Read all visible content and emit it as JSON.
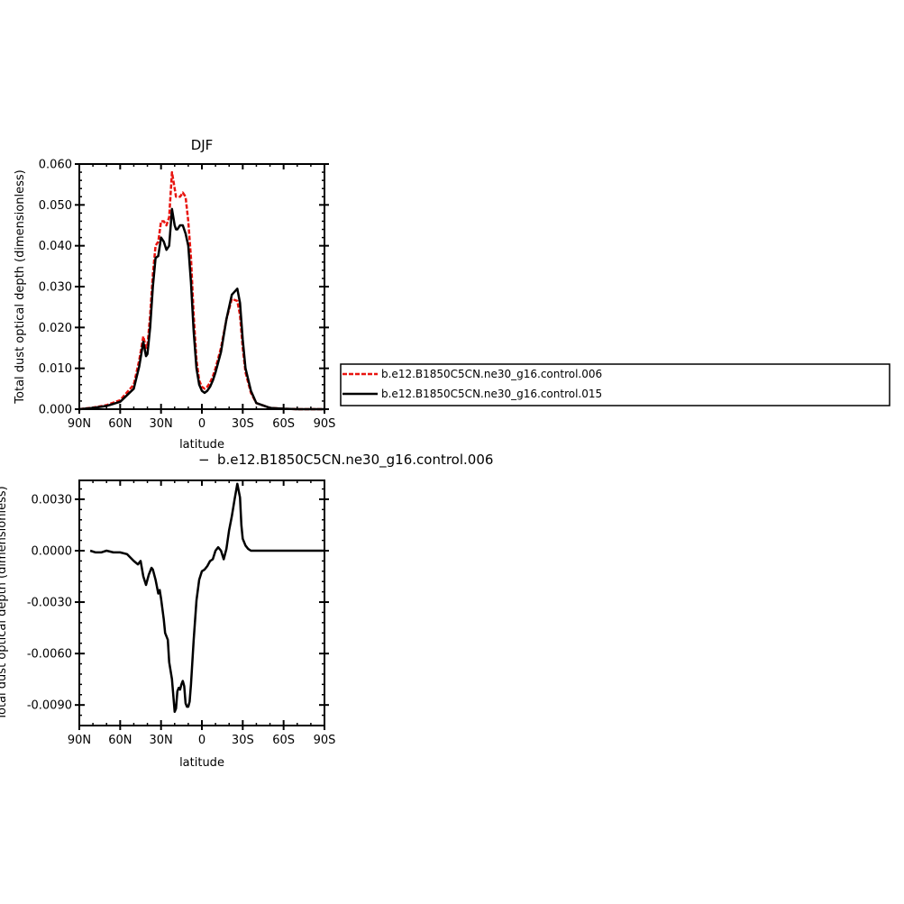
{
  "colors": {
    "series_006": "#e8140f",
    "series_015": "#000000",
    "diff": "#000000"
  },
  "legend": {
    "entries": [
      "b.e12.B1850C5CN.ne30_g16.control.006",
      "b.e12.B1850C5CN.ne30_g16.control.015"
    ]
  },
  "chart_data": [
    {
      "type": "line",
      "title": "DJF",
      "xlabel": "latitude",
      "ylabel": "Total dust optical depth (dimensionless)",
      "xlim": [
        90,
        -90
      ],
      "ylim": [
        0,
        0.06
      ],
      "x_ticks": [
        90,
        60,
        30,
        0,
        -30,
        -60,
        -90
      ],
      "x_tick_labels": [
        "90N",
        "60N",
        "30N",
        "0",
        "30S",
        "60S",
        "90S"
      ],
      "y_ticks": [
        0,
        0.01,
        0.02,
        0.03,
        0.04,
        0.05,
        0.06
      ],
      "y_tick_labels": [
        "0.000",
        "0.010",
        "0.020",
        "0.030",
        "0.040",
        "0.050",
        "0.060"
      ],
      "series": [
        {
          "name": "b.e12.B1850C5CN.ne30_g16.control.006",
          "style": "dashed",
          "color": "#e8140f",
          "x": [
            90,
            80,
            70,
            60,
            50,
            46,
            43,
            41,
            40,
            38,
            36,
            34,
            32,
            30,
            28,
            26,
            24,
            22,
            20,
            19,
            18,
            16,
            14,
            12,
            10,
            8,
            6,
            4,
            2,
            0,
            -2,
            -4,
            -6,
            -8,
            -10,
            -14,
            -18,
            -22,
            -26,
            -28,
            -30,
            -32,
            -36,
            -40,
            -50,
            -60,
            -70,
            -80,
            -90
          ],
          "y": [
            0.0,
            0.0004,
            0.001,
            0.0022,
            0.006,
            0.012,
            0.0178,
            0.015,
            0.0155,
            0.023,
            0.033,
            0.04,
            0.041,
            0.046,
            0.046,
            0.045,
            0.047,
            0.058,
            0.054,
            0.052,
            0.052,
            0.052,
            0.053,
            0.052,
            0.046,
            0.037,
            0.023,
            0.012,
            0.007,
            0.0055,
            0.005,
            0.0055,
            0.0065,
            0.008,
            0.01,
            0.015,
            0.022,
            0.027,
            0.0265,
            0.023,
            0.015,
            0.009,
            0.004,
            0.0015,
            0.0003,
            0.0001,
            0.0,
            0.0,
            0.0
          ]
        },
        {
          "name": "b.e12.B1850C5CN.ne30_g16.control.015",
          "style": "solid",
          "color": "#000000",
          "x": [
            90,
            80,
            70,
            60,
            50,
            46,
            43,
            41,
            40,
            38,
            36,
            34,
            32,
            30,
            28,
            26,
            24,
            22,
            20,
            19,
            18,
            16,
            14,
            12,
            10,
            8,
            6,
            4,
            2,
            0,
            -2,
            -4,
            -6,
            -8,
            -10,
            -14,
            -18,
            -22,
            -26,
            -28,
            -30,
            -32,
            -36,
            -40,
            -50,
            -60,
            -70,
            -80,
            -90
          ],
          "y": [
            0.0,
            0.0003,
            0.0008,
            0.0018,
            0.005,
            0.0105,
            0.0165,
            0.013,
            0.0135,
            0.02,
            0.03,
            0.037,
            0.0375,
            0.042,
            0.041,
            0.039,
            0.04,
            0.049,
            0.045,
            0.044,
            0.044,
            0.045,
            0.045,
            0.043,
            0.04,
            0.031,
            0.019,
            0.01,
            0.006,
            0.0045,
            0.004,
            0.0045,
            0.0055,
            0.007,
            0.009,
            0.014,
            0.022,
            0.028,
            0.0295,
            0.026,
            0.017,
            0.01,
            0.0045,
            0.0015,
            0.0003,
            0.0001,
            0.0,
            0.0,
            0.0
          ]
        }
      ]
    },
    {
      "type": "line",
      "title": "b.e12.B1850C5CN.ne30_g16.control.006",
      "title_prefix": "−",
      "xlabel": "latitude",
      "ylabel": "Total dust optical depth (dimensionless)",
      "xlim": [
        90,
        -90
      ],
      "ylim": [
        -0.0102,
        0.0041
      ],
      "x_ticks": [
        90,
        60,
        30,
        0,
        -30,
        -60,
        -90
      ],
      "x_tick_labels": [
        "90N",
        "60N",
        "30N",
        "0",
        "30S",
        "60S",
        "90S"
      ],
      "y_ticks": [
        0.003,
        0.0,
        -0.003,
        -0.006,
        -0.009
      ],
      "y_tick_labels": [
        "0.0030",
        "0.0000",
        "-0.0030",
        "-0.0060",
        "-0.0090"
      ],
      "series": [
        {
          "name": "",
          "style": "solid",
          "color": "#000000",
          "x": [
            82,
            78,
            74,
            70,
            65,
            60,
            55,
            50,
            47,
            45,
            43,
            41,
            39,
            37,
            36,
            34,
            32,
            31,
            30,
            28,
            27,
            26,
            25,
            24,
            22,
            20,
            19,
            18,
            17,
            16,
            15,
            14,
            13,
            12,
            11,
            10,
            9,
            8,
            6,
            4,
            2,
            0,
            -2,
            -4,
            -6,
            -8,
            -10,
            -12,
            -14,
            -16,
            -18,
            -20,
            -22,
            -24,
            -26,
            -28,
            -29,
            -30,
            -32,
            -34,
            -36,
            -40,
            -45,
            -50,
            -60,
            -70,
            -80,
            -90
          ],
          "y": [
            0.0,
            -0.0001,
            -0.0001,
            0.0,
            -0.0001,
            -0.0001,
            -0.0002,
            -0.0006,
            -0.0008,
            -0.0006,
            -0.0015,
            -0.002,
            -0.0014,
            -0.001,
            -0.0011,
            -0.0017,
            -0.0025,
            -0.0023,
            -0.0028,
            -0.004,
            -0.0048,
            -0.005,
            -0.0052,
            -0.0065,
            -0.0075,
            -0.0094,
            -0.0092,
            -0.0082,
            -0.008,
            -0.0081,
            -0.0078,
            -0.0076,
            -0.0079,
            -0.0089,
            -0.0091,
            -0.0091,
            -0.0088,
            -0.0078,
            -0.0052,
            -0.0029,
            -0.0017,
            -0.0012,
            -0.0011,
            -0.0009,
            -0.0006,
            -0.0005,
            -0.0,
            0.0002,
            0.0,
            -0.0005,
            0.0001,
            0.0012,
            0.002,
            0.003,
            0.0039,
            0.0031,
            0.0015,
            0.0007,
            0.0003,
            0.0001,
            0.0,
            0.0,
            0.0,
            0.0,
            0.0,
            0.0,
            0.0,
            0.0
          ]
        }
      ]
    }
  ]
}
